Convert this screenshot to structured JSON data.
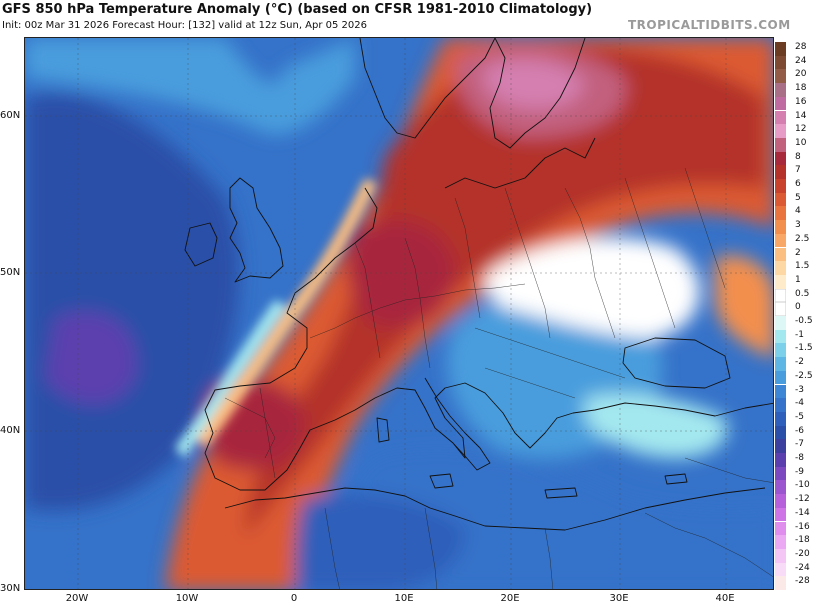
{
  "header": {
    "title": "GFS 850 hPa Temperature Anomaly (°C) (based on CFSR 1981-2010 Climatology)",
    "subtitle": "Init: 00z Mar 31 2026   Forecast Hour: [132]   valid at 12z Sun, Apr 05 2026",
    "brand": "TROPICALTIDBITS.COM"
  },
  "axes": {
    "lat_labels": [
      "60N",
      "50N",
      "40N",
      "30N"
    ],
    "lon_labels": [
      "20W",
      "10W",
      "0",
      "10E",
      "20E",
      "30E",
      "40E"
    ]
  },
  "colorbar": {
    "levels": [
      {
        "label": "28",
        "color": "#6b3b22"
      },
      {
        "label": "24",
        "color": "#7f4a32"
      },
      {
        "label": "20",
        "color": "#935c47"
      },
      {
        "label": "18",
        "color": "#a96f86"
      },
      {
        "label": "16",
        "color": "#bf6aa0"
      },
      {
        "label": "14",
        "color": "#d47fb0"
      },
      {
        "label": "12",
        "color": "#e79cc8"
      },
      {
        "label": "10",
        "color": "#c2617e"
      },
      {
        "label": "8",
        "color": "#a8283c"
      },
      {
        "label": "7",
        "color": "#b4322a"
      },
      {
        "label": "6",
        "color": "#c9422b"
      },
      {
        "label": "5",
        "color": "#dc5a33"
      },
      {
        "label": "4",
        "color": "#e9743d"
      },
      {
        "label": "3",
        "color": "#f38f4d"
      },
      {
        "label": "2.5",
        "color": "#f8a766"
      },
      {
        "label": "2",
        "color": "#fbbf82"
      },
      {
        "label": "1.5",
        "color": "#fdd7a4"
      },
      {
        "label": "1",
        "color": "#feebc9"
      },
      {
        "label": "0.5",
        "color": "#ffffff"
      },
      {
        "label": "0",
        "color": "#ffffff"
      },
      {
        "label": "-0.5",
        "color": "#ddf6f6"
      },
      {
        "label": "-1",
        "color": "#a4e8ef"
      },
      {
        "label": "-1.5",
        "color": "#7dd0ea"
      },
      {
        "label": "-2",
        "color": "#5db6e4"
      },
      {
        "label": "-2.5",
        "color": "#4a9ddd"
      },
      {
        "label": "-3",
        "color": "#3d86d5"
      },
      {
        "label": "-4",
        "color": "#3572c9"
      },
      {
        "label": "-5",
        "color": "#2e5fba"
      },
      {
        "label": "-6",
        "color": "#2a4fa8"
      },
      {
        "label": "-7",
        "color": "#3c3f9e"
      },
      {
        "label": "-8",
        "color": "#5c3fae"
      },
      {
        "label": "-9",
        "color": "#7c49c0"
      },
      {
        "label": "-10",
        "color": "#9a55cf"
      },
      {
        "label": "-12",
        "color": "#b760dc"
      },
      {
        "label": "-14",
        "color": "#cf74e6"
      },
      {
        "label": "-16",
        "color": "#e08eee"
      },
      {
        "label": "-18",
        "color": "#eba9f3"
      },
      {
        "label": "-20",
        "color": "#f3c6f6"
      },
      {
        "label": "-24",
        "color": "#f8dcf7"
      },
      {
        "label": "-28",
        "color": "#fbe9e8"
      }
    ]
  }
}
